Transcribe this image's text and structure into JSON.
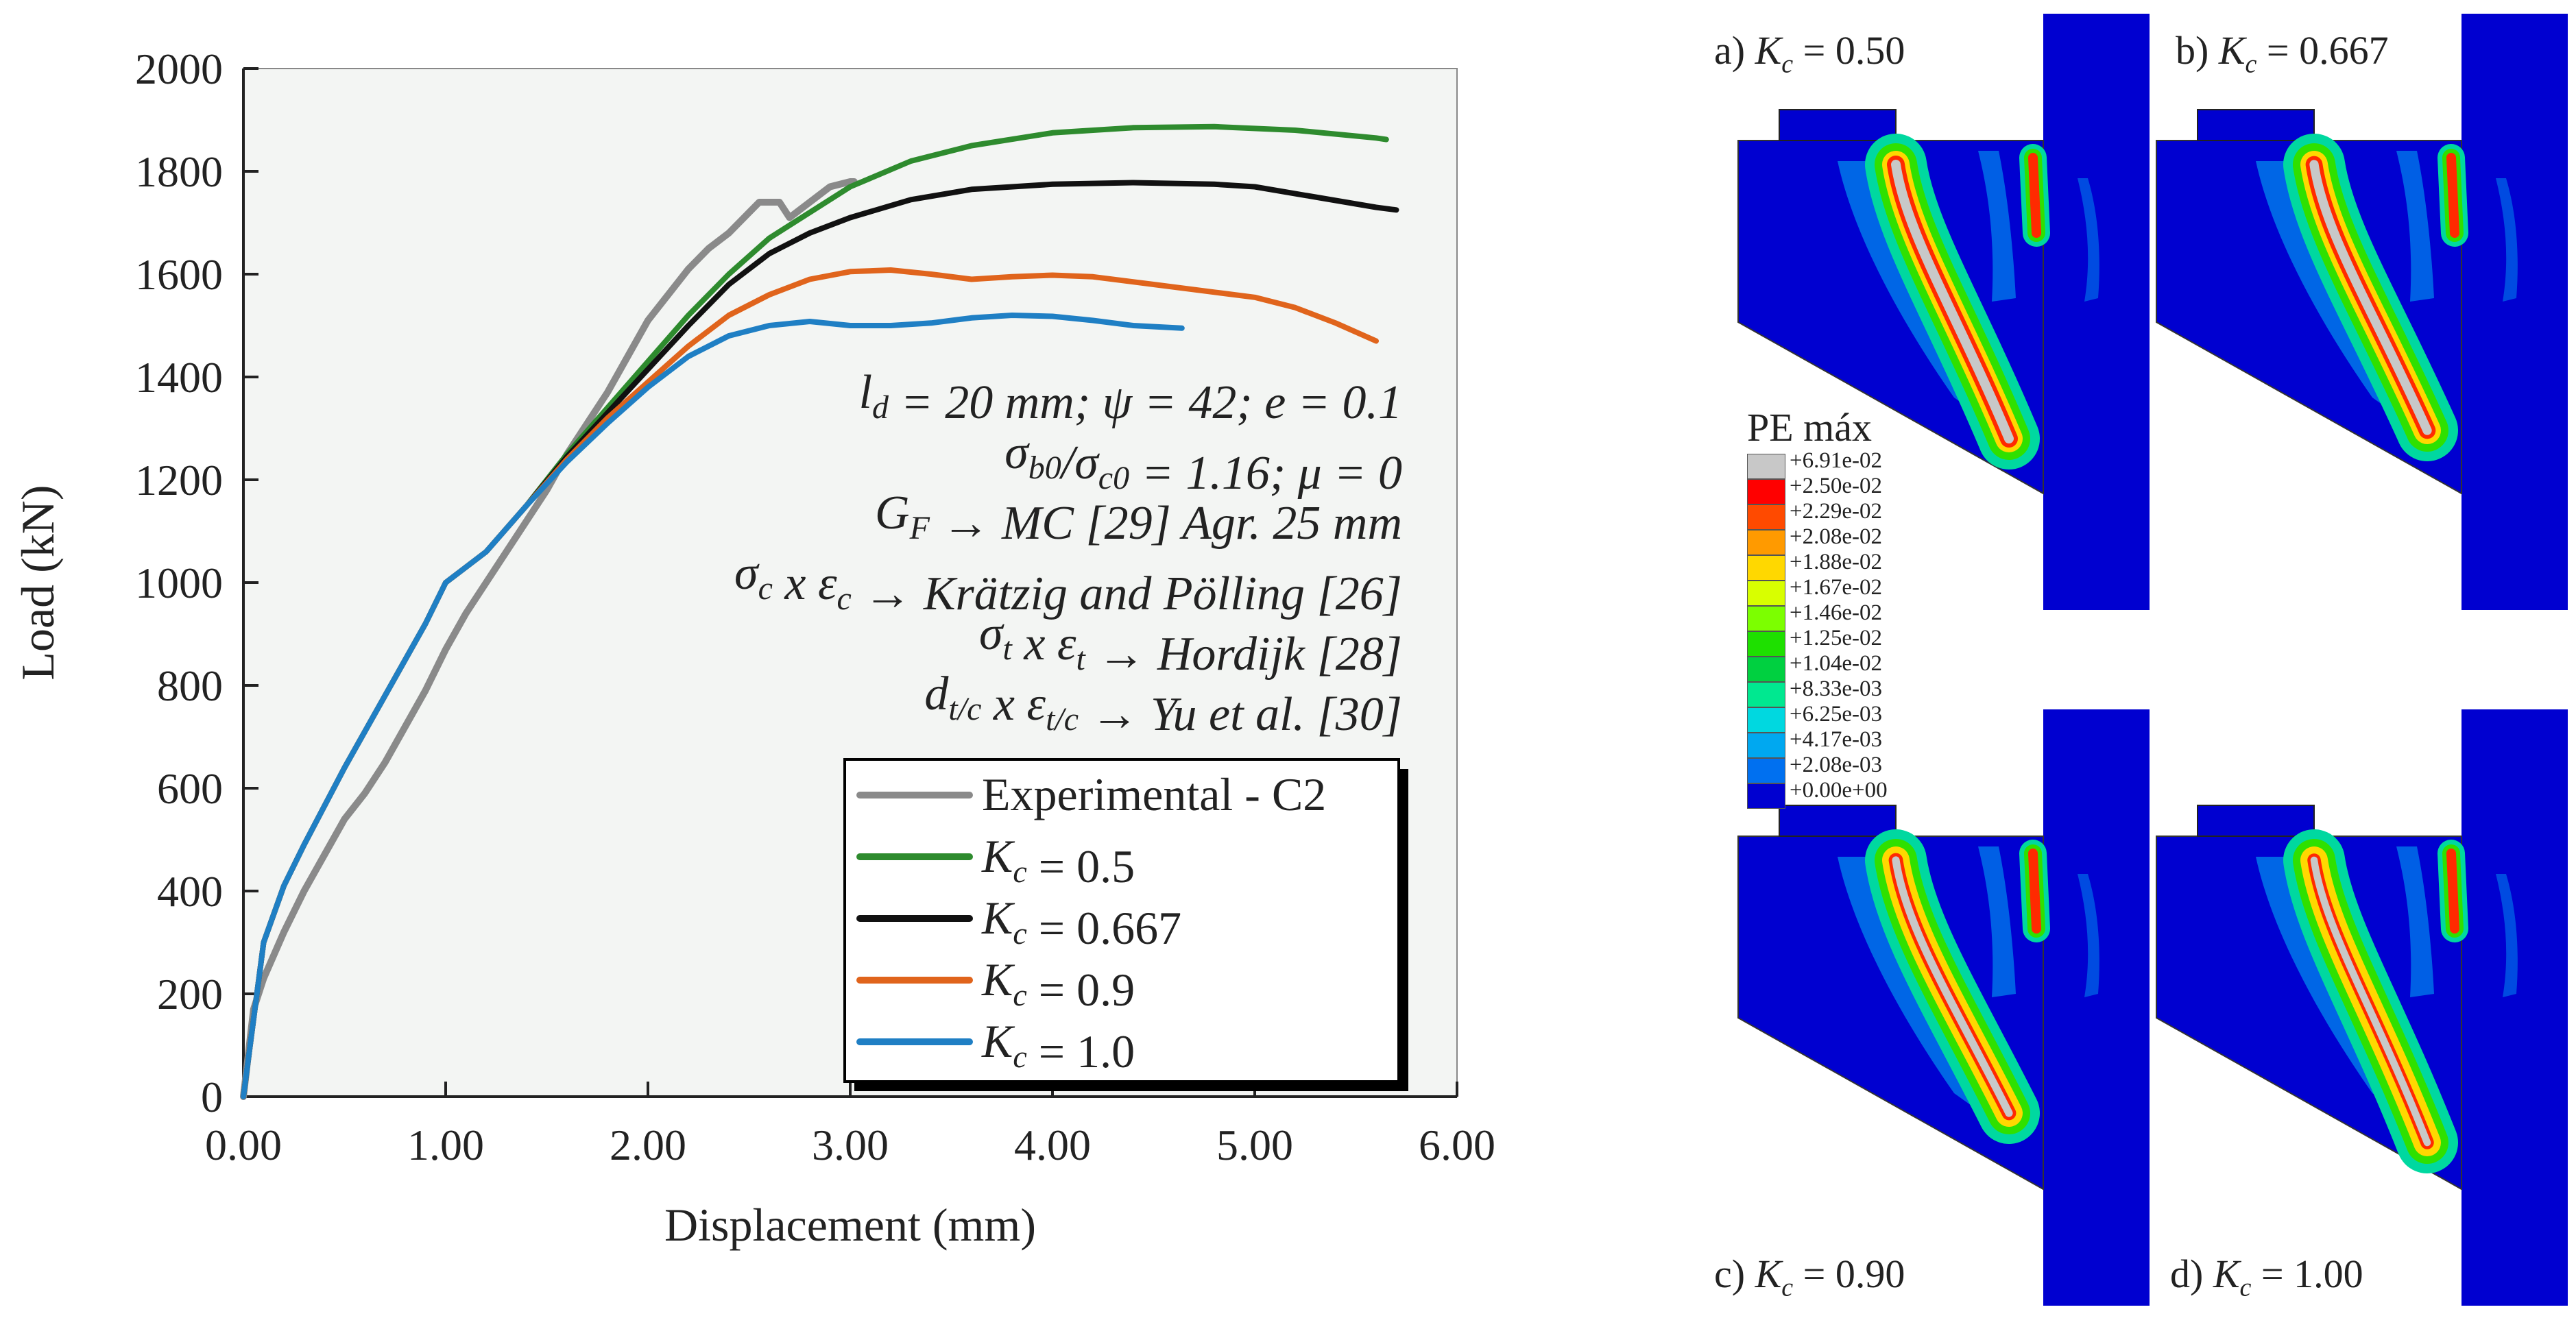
{
  "chart_data": {
    "type": "line",
    "xlabel": "Displacement (mm)",
    "ylabel": "Load (kN)",
    "xlim": [
      0,
      6
    ],
    "ylim": [
      0,
      2000
    ],
    "xticks": [
      "0.00",
      "1.00",
      "2.00",
      "3.00",
      "4.00",
      "5.00",
      "6.00"
    ],
    "yticks": [
      "0",
      "200",
      "400",
      "600",
      "800",
      "1000",
      "1200",
      "1400",
      "1600",
      "1800",
      "2000"
    ],
    "grid": false,
    "legend_position": "bottom-right",
    "legend": [
      {
        "prefix": "Experimental - C2",
        "sub": "",
        "suffix": ""
      },
      {
        "prefix": "K",
        "sub": "c",
        "suffix": " = 0.5"
      },
      {
        "prefix": "K",
        "sub": "c",
        "suffix": " = 0.667"
      },
      {
        "prefix": "K",
        "sub": "c",
        "suffix": " = 0.9"
      },
      {
        "prefix": "K",
        "sub": "c",
        "suffix": " = 1.0"
      }
    ],
    "annotation": [
      [
        {
          "t": "l",
          "i": true
        },
        {
          "t": "d",
          "sub": true,
          "i": true
        },
        {
          "t": "  = 20 mm; ψ = 42; e = 0.1",
          "i": true
        }
      ],
      [
        {
          "t": "σ",
          "i": true
        },
        {
          "t": "b0",
          "sub": true,
          "i": true
        },
        {
          "t": "/σ",
          "i": true
        },
        {
          "t": "c0",
          "sub": true,
          "i": true
        },
        {
          "t": " = 1.16; μ = 0",
          "i": true
        }
      ],
      [
        {
          "t": "G",
          "i": true
        },
        {
          "t": "F",
          "sub": true,
          "i": true
        },
        {
          "t": " → MC [29] Agr. 25 mm",
          "i": true
        }
      ],
      [
        {
          "t": "σ",
          "i": true
        },
        {
          "t": "c",
          "sub": true,
          "i": true
        },
        {
          "t": " x ε",
          "i": true
        },
        {
          "t": "c",
          "sub": true,
          "i": true
        },
        {
          "t": " → Krätzig and Pölling [26]",
          "i": true
        }
      ],
      [
        {
          "t": "σ",
          "i": true
        },
        {
          "t": "t",
          "sub": true,
          "i": true
        },
        {
          "t": " x ε",
          "i": true
        },
        {
          "t": "t",
          "sub": true,
          "i": true
        },
        {
          "t": " → Hordijk [28]",
          "i": true
        }
      ],
      [
        {
          "t": "d",
          "i": true
        },
        {
          "t": "t/c",
          "sub": true,
          "i": true
        },
        {
          "t": " x ε",
          "i": true
        },
        {
          "t": "t/c",
          "sub": true,
          "i": true
        },
        {
          "t": " → Yu et al. [30]",
          "i": true
        }
      ]
    ],
    "series": [
      {
        "name": "Experimental - C2",
        "color": "#8a8a8a",
        "points": [
          [
            0,
            0
          ],
          [
            0.05,
            170
          ],
          [
            0.1,
            230
          ],
          [
            0.2,
            320
          ],
          [
            0.3,
            400
          ],
          [
            0.4,
            470
          ],
          [
            0.5,
            540
          ],
          [
            0.6,
            590
          ],
          [
            0.7,
            650
          ],
          [
            0.8,
            720
          ],
          [
            0.9,
            790
          ],
          [
            1.0,
            870
          ],
          [
            1.1,
            940
          ],
          [
            1.2,
            1000
          ],
          [
            1.3,
            1060
          ],
          [
            1.4,
            1120
          ],
          [
            1.5,
            1180
          ],
          [
            1.6,
            1250
          ],
          [
            1.7,
            1310
          ],
          [
            1.8,
            1370
          ],
          [
            1.9,
            1440
          ],
          [
            2.0,
            1510
          ],
          [
            2.1,
            1560
          ],
          [
            2.2,
            1610
          ],
          [
            2.3,
            1650
          ],
          [
            2.4,
            1680
          ],
          [
            2.5,
            1720
          ],
          [
            2.55,
            1740
          ],
          [
            2.65,
            1740
          ],
          [
            2.7,
            1710
          ],
          [
            2.8,
            1740
          ],
          [
            2.9,
            1770
          ],
          [
            3.0,
            1780
          ],
          [
            3.02,
            1780
          ]
        ]
      },
      {
        "name": "Kc = 0.5",
        "color": "#2e8b2e",
        "points": [
          [
            0,
            0
          ],
          [
            0.1,
            300
          ],
          [
            0.2,
            410
          ],
          [
            0.3,
            490
          ],
          [
            0.5,
            640
          ],
          [
            0.7,
            780
          ],
          [
            0.9,
            920
          ],
          [
            1.0,
            1000
          ],
          [
            1.1,
            1030
          ],
          [
            1.2,
            1060
          ],
          [
            1.4,
            1150
          ],
          [
            1.6,
            1250
          ],
          [
            1.8,
            1340
          ],
          [
            2.0,
            1430
          ],
          [
            2.2,
            1520
          ],
          [
            2.4,
            1600
          ],
          [
            2.6,
            1670
          ],
          [
            2.8,
            1720
          ],
          [
            3.0,
            1770
          ],
          [
            3.3,
            1820
          ],
          [
            3.6,
            1850
          ],
          [
            4.0,
            1875
          ],
          [
            4.4,
            1885
          ],
          [
            4.8,
            1887
          ],
          [
            5.2,
            1880
          ],
          [
            5.6,
            1865
          ],
          [
            5.65,
            1862
          ]
        ]
      },
      {
        "name": "Kc = 0.667",
        "color": "#111111",
        "points": [
          [
            0,
            0
          ],
          [
            0.1,
            300
          ],
          [
            0.2,
            410
          ],
          [
            0.3,
            490
          ],
          [
            0.5,
            640
          ],
          [
            0.7,
            780
          ],
          [
            0.9,
            920
          ],
          [
            1.0,
            1000
          ],
          [
            1.1,
            1030
          ],
          [
            1.2,
            1060
          ],
          [
            1.4,
            1150
          ],
          [
            1.6,
            1245
          ],
          [
            1.8,
            1330
          ],
          [
            2.0,
            1415
          ],
          [
            2.2,
            1500
          ],
          [
            2.4,
            1580
          ],
          [
            2.6,
            1640
          ],
          [
            2.8,
            1680
          ],
          [
            3.0,
            1710
          ],
          [
            3.3,
            1745
          ],
          [
            3.6,
            1765
          ],
          [
            4.0,
            1775
          ],
          [
            4.4,
            1778
          ],
          [
            4.8,
            1775
          ],
          [
            5.0,
            1770
          ],
          [
            5.3,
            1750
          ],
          [
            5.6,
            1730
          ],
          [
            5.7,
            1725
          ]
        ]
      },
      {
        "name": "Kc = 0.9",
        "color": "#e0641c",
        "points": [
          [
            0,
            0
          ],
          [
            0.1,
            300
          ],
          [
            0.2,
            410
          ],
          [
            0.3,
            490
          ],
          [
            0.5,
            640
          ],
          [
            0.7,
            780
          ],
          [
            0.9,
            920
          ],
          [
            1.0,
            1000
          ],
          [
            1.1,
            1030
          ],
          [
            1.2,
            1060
          ],
          [
            1.4,
            1150
          ],
          [
            1.6,
            1240
          ],
          [
            1.8,
            1320
          ],
          [
            2.0,
            1390
          ],
          [
            2.2,
            1460
          ],
          [
            2.4,
            1520
          ],
          [
            2.6,
            1560
          ],
          [
            2.8,
            1590
          ],
          [
            3.0,
            1605
          ],
          [
            3.2,
            1608
          ],
          [
            3.4,
            1600
          ],
          [
            3.6,
            1590
          ],
          [
            3.8,
            1595
          ],
          [
            4.0,
            1598
          ],
          [
            4.2,
            1595
          ],
          [
            4.5,
            1580
          ],
          [
            4.8,
            1565
          ],
          [
            5.0,
            1555
          ],
          [
            5.2,
            1535
          ],
          [
            5.4,
            1505
          ],
          [
            5.6,
            1470
          ]
        ]
      },
      {
        "name": "Kc = 1.0",
        "color": "#1f7fc4",
        "points": [
          [
            0,
            0
          ],
          [
            0.1,
            300
          ],
          [
            0.2,
            410
          ],
          [
            0.3,
            490
          ],
          [
            0.5,
            640
          ],
          [
            0.7,
            780
          ],
          [
            0.9,
            920
          ],
          [
            1.0,
            1000
          ],
          [
            1.1,
            1030
          ],
          [
            1.2,
            1060
          ],
          [
            1.4,
            1150
          ],
          [
            1.6,
            1235
          ],
          [
            1.8,
            1310
          ],
          [
            2.0,
            1380
          ],
          [
            2.2,
            1440
          ],
          [
            2.4,
            1480
          ],
          [
            2.6,
            1500
          ],
          [
            2.8,
            1508
          ],
          [
            3.0,
            1500
          ],
          [
            3.2,
            1500
          ],
          [
            3.4,
            1505
          ],
          [
            3.6,
            1515
          ],
          [
            3.8,
            1520
          ],
          [
            4.0,
            1518
          ],
          [
            4.2,
            1510
          ],
          [
            4.4,
            1500
          ],
          [
            4.64,
            1495
          ]
        ]
      }
    ]
  },
  "fem": {
    "panels": [
      {
        "id": "a",
        "prefix": "a) K",
        "sub": "c",
        "suffix": " = 0.50"
      },
      {
        "id": "b",
        "prefix": "b) K",
        "sub": "c",
        "suffix": " = 0.667"
      },
      {
        "id": "c",
        "prefix": "c) K",
        "sub": "c",
        "suffix": " = 0.90"
      },
      {
        "id": "d",
        "prefix": "d) K",
        "sub": "c",
        "suffix": " = 1.00"
      }
    ],
    "colorbar": {
      "title": "PE máx",
      "labels": [
        "+6.91e-02",
        "+2.50e-02",
        "+2.29e-02",
        "+2.08e-02",
        "+1.88e-02",
        "+1.67e-02",
        "+1.46e-02",
        "+1.25e-02",
        "+1.04e-02",
        "+8.33e-03",
        "+6.25e-03",
        "+4.17e-03",
        "+2.08e-03",
        "+0.00e+00"
      ],
      "colors": [
        "#c8c8c8",
        "#ff0000",
        "#ff4a00",
        "#ff9a00",
        "#ffd800",
        "#d8ff00",
        "#7cff00",
        "#1ee000",
        "#00d040",
        "#00e890",
        "#00d8e0",
        "#00a8f0",
        "#0070f0",
        "#0000d0"
      ]
    }
  }
}
